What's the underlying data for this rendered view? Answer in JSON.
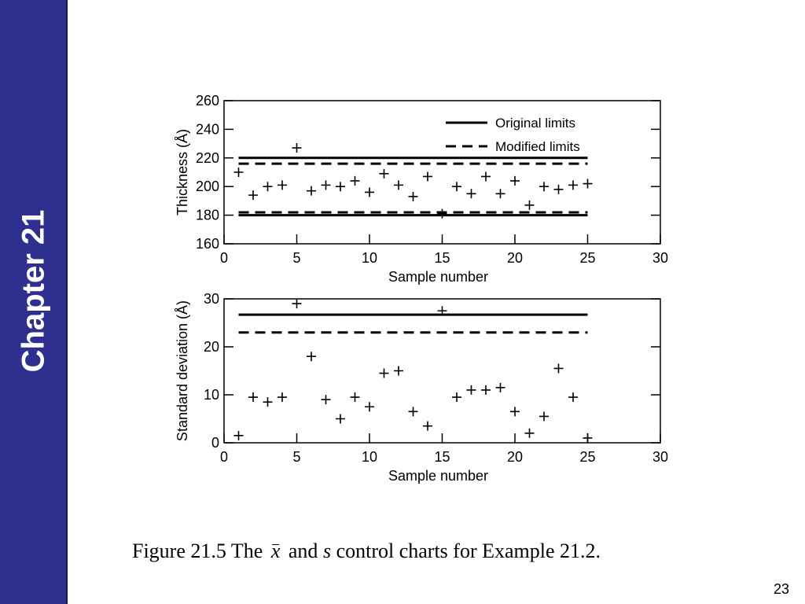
{
  "sidebar": {
    "label": "Chapter 21",
    "color": "#2e2f8f"
  },
  "caption": {
    "prefix": "Figure 21.5 The",
    "xbar_symbol": "x",
    "and_text": "and",
    "s_symbol": "s",
    "suffix": "control charts for Example 21.2."
  },
  "page_number": "23",
  "chart_data": [
    {
      "type": "scatter",
      "xlabel": "Sample number",
      "ylabel": "Thickness (Å)",
      "xlim": [
        0,
        30
      ],
      "ylim": [
        160,
        260
      ],
      "xticks": [
        0,
        5,
        10,
        15,
        20,
        25,
        30
      ],
      "yticks": [
        160,
        180,
        200,
        220,
        240,
        260
      ],
      "legend": {
        "placement": "top-right",
        "entries": [
          {
            "label": "Original limits",
            "style": "solid"
          },
          {
            "label": "Modified limits",
            "style": "dashed"
          }
        ]
      },
      "series": [
        {
          "x": [
            1,
            2,
            3,
            4,
            5,
            6,
            7,
            8,
            9,
            10,
            11,
            12,
            13,
            14,
            15,
            16,
            17,
            18,
            19,
            20,
            21,
            22,
            23,
            24,
            25
          ],
          "y": [
            210,
            194,
            200,
            201,
            227,
            197,
            201,
            200,
            204,
            196,
            209,
            201,
            193,
            207,
            181,
            200,
            195,
            207,
            195,
            204,
            187,
            200,
            198,
            201,
            202
          ]
        }
      ],
      "limit_lines": [
        {
          "style": "solid",
          "y": 220,
          "x": [
            1,
            25
          ]
        },
        {
          "style": "solid",
          "y": 180,
          "x": [
            1,
            25
          ]
        },
        {
          "style": "dashed",
          "y": 216,
          "x": [
            1,
            25
          ]
        },
        {
          "style": "dashed",
          "y": 182,
          "x": [
            1,
            25
          ]
        }
      ]
    },
    {
      "type": "scatter",
      "xlabel": "Sample number",
      "ylabel": "Standard deviation (Å)",
      "xlim": [
        0,
        30
      ],
      "ylim": [
        0,
        30
      ],
      "xticks": [
        0,
        5,
        10,
        15,
        20,
        25,
        30
      ],
      "yticks": [
        0,
        10,
        20,
        30
      ],
      "series": [
        {
          "x": [
            1,
            2,
            3,
            4,
            5,
            6,
            7,
            8,
            9,
            10,
            11,
            12,
            13,
            14,
            15,
            16,
            17,
            18,
            19,
            20,
            21,
            22,
            23,
            24,
            25
          ],
          "y": [
            1.5,
            9.5,
            8.5,
            9.5,
            29,
            18,
            9,
            5,
            9.5,
            7.5,
            14.5,
            15,
            6.5,
            3.5,
            27.5,
            9.5,
            11,
            11,
            11.5,
            6.5,
            2,
            5.5,
            15.5,
            9.5,
            1
          ]
        }
      ],
      "limit_lines": [
        {
          "style": "solid",
          "y": 26.7,
          "x": [
            1,
            25
          ]
        },
        {
          "style": "dashed",
          "y": 23,
          "x": [
            1,
            25
          ]
        }
      ]
    }
  ]
}
